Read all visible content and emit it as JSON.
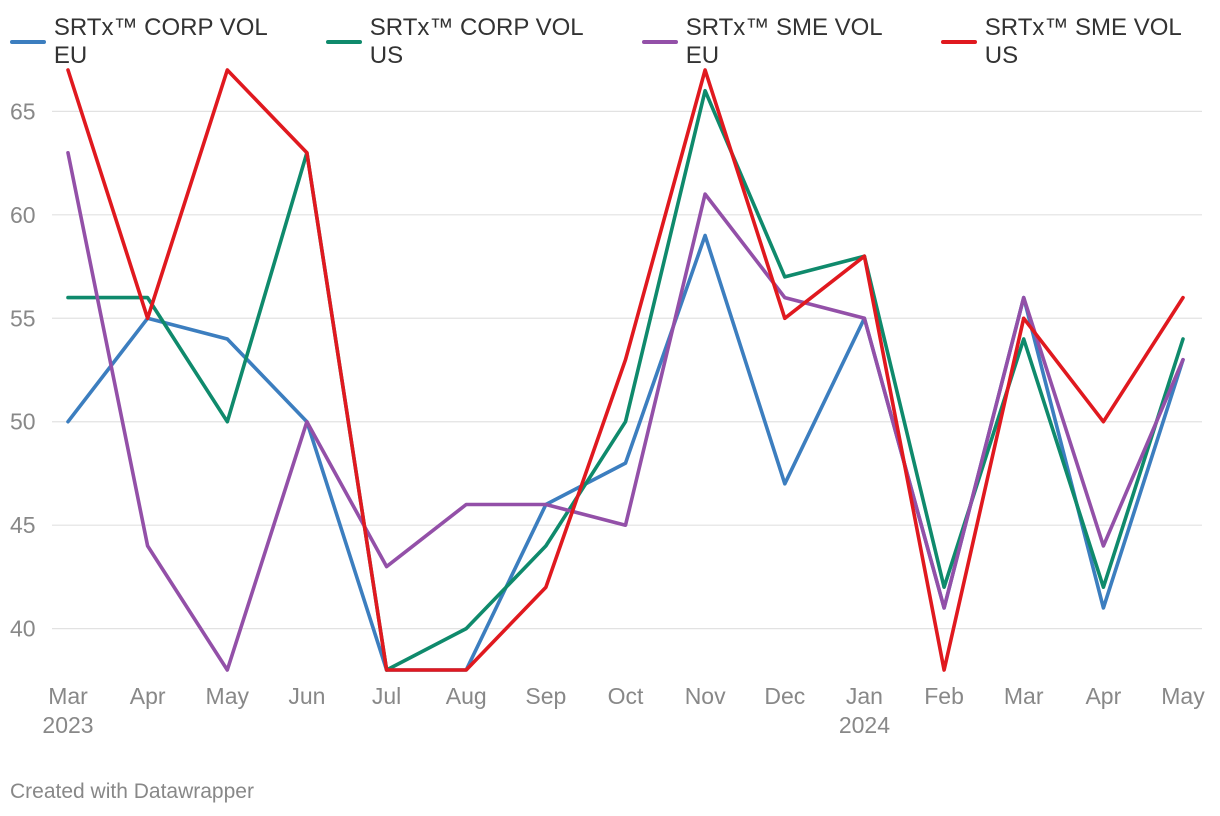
{
  "chart_data": {
    "type": "line",
    "x": [
      "Mar",
      "Apr",
      "May",
      "Jun",
      "Jul",
      "Aug",
      "Sep",
      "Oct",
      "Nov",
      "Dec",
      "Jan",
      "Feb",
      "Mar",
      "Apr",
      "May"
    ],
    "x_year_labels": [
      {
        "index": 0,
        "label": "2023"
      },
      {
        "index": 10,
        "label": "2024"
      }
    ],
    "ylim": [
      38,
      67
    ],
    "yticks": [
      40,
      45,
      50,
      55,
      60,
      65
    ],
    "grid": true,
    "legend_position": "top-left",
    "series": [
      {
        "name": "SRTx™ CORP VOL EU",
        "color": "#3c7ebf",
        "values": [
          50,
          55,
          54,
          50,
          38,
          38,
          46,
          48,
          59,
          47,
          55,
          41,
          56,
          41,
          53
        ]
      },
      {
        "name": "SRTx™ CORP VOL US",
        "color": "#0f8a6c",
        "values": [
          56,
          56,
          50,
          63,
          38,
          40,
          44,
          50,
          66,
          57,
          58,
          42,
          54,
          42,
          54
        ]
      },
      {
        "name": "SRTx™ SME VOL EU",
        "color": "#9350a8",
        "values": [
          63,
          44,
          38,
          50,
          43,
          46,
          46,
          45,
          61,
          56,
          55,
          41,
          56,
          44,
          53
        ]
      },
      {
        "name": "SRTx™ SME VOL US",
        "color": "#e0191f",
        "values": [
          67,
          55,
          67,
          63,
          38,
          38,
          42,
          53,
          67,
          55,
          58,
          38,
          55,
          50,
          56
        ]
      }
    ]
  },
  "footer": {
    "text": "Created with Datawrapper"
  }
}
